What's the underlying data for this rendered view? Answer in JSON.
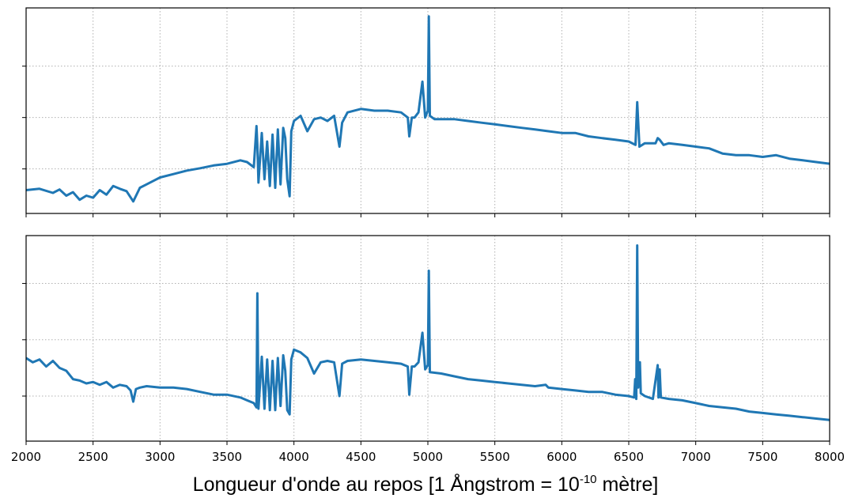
{
  "chart_data": [
    {
      "type": "line",
      "panel": "top",
      "xlim": [
        2000,
        8000
      ],
      "xticks": [
        2000,
        2500,
        3000,
        3500,
        4000,
        4500,
        5000,
        5500,
        6000,
        6500,
        7000,
        7500,
        8000
      ],
      "y_tick_labels_shown": false,
      "grid": true,
      "color": "#1f77b4",
      "series": [
        {
          "x": [
            2000,
            2100,
            2200,
            2250,
            2300,
            2350,
            2400,
            2450,
            2500,
            2550,
            2600,
            2650,
            2700,
            2750,
            2800,
            2850,
            2900,
            2950,
            3000,
            3100,
            3200,
            3300,
            3400,
            3500,
            3600,
            3650,
            3700,
            3720,
            3727,
            3735,
            3760,
            3780,
            3800,
            3820,
            3840,
            3860,
            3880,
            3900,
            3920,
            3935,
            3950,
            3968,
            3980,
            4000,
            4050,
            4100,
            4150,
            4200,
            4250,
            4300,
            4340,
            4360,
            4400,
            4500,
            4600,
            4700,
            4800,
            4850,
            4861,
            4880,
            4900,
            4930,
            4959,
            4980,
            5000,
            5007,
            5015,
            5050,
            5100,
            5200,
            5300,
            5400,
            5500,
            5600,
            5700,
            5800,
            5900,
            6000,
            6100,
            6200,
            6300,
            6400,
            6500,
            6550,
            6563,
            6580,
            6620,
            6700,
            6716,
            6731,
            6760,
            6800,
            6900,
            7000,
            7100,
            7200,
            7300,
            7400,
            7500,
            7600,
            7700,
            7800,
            7900,
            8000
          ],
          "y": [
            0.88,
            0.92,
            0.8,
            0.9,
            0.72,
            0.82,
            0.6,
            0.72,
            0.66,
            0.88,
            0.75,
            1.0,
            0.92,
            0.85,
            0.55,
            0.95,
            1.05,
            1.15,
            1.25,
            1.35,
            1.45,
            1.52,
            1.6,
            1.65,
            1.75,
            1.7,
            1.55,
            2.75,
            2.2,
            1.1,
            2.55,
            1.2,
            2.3,
            1.0,
            2.5,
            0.95,
            2.65,
            1.05,
            2.7,
            2.4,
            1.2,
            0.7,
            2.6,
            2.9,
            3.05,
            2.6,
            2.95,
            3.0,
            2.9,
            3.05,
            2.15,
            2.85,
            3.15,
            3.25,
            3.2,
            3.2,
            3.15,
            3.0,
            2.45,
            3.0,
            3.0,
            3.15,
            4.05,
            3.0,
            3.2,
            5.95,
            3.05,
            2.95,
            2.95,
            2.95,
            2.9,
            2.85,
            2.8,
            2.75,
            2.7,
            2.65,
            2.6,
            2.55,
            2.55,
            2.45,
            2.4,
            2.35,
            2.3,
            2.2,
            3.45,
            2.15,
            2.25,
            2.25,
            2.4,
            2.35,
            2.2,
            2.25,
            2.2,
            2.15,
            2.1,
            1.95,
            1.9,
            1.9,
            1.85,
            1.9,
            1.8,
            1.75,
            1.7,
            1.65
          ]
        }
      ]
    },
    {
      "type": "line",
      "panel": "bottom",
      "xlim": [
        2000,
        8000
      ],
      "xticks": [
        2000,
        2500,
        3000,
        3500,
        4000,
        4500,
        5000,
        5500,
        6000,
        6500,
        7000,
        7500,
        8000
      ],
      "xlabel_prefix": "Longueur d'onde au repos [1 Ångstrom = 10",
      "xlabel_exponent": "-10",
      "xlabel_suffix": " mètre]",
      "y_tick_labels_shown": false,
      "grid": true,
      "color": "#1f77b4",
      "series": [
        {
          "x": [
            2000,
            2050,
            2100,
            2150,
            2200,
            2250,
            2300,
            2350,
            2400,
            2450,
            2500,
            2550,
            2600,
            2650,
            2700,
            2750,
            2780,
            2800,
            2820,
            2850,
            2900,
            3000,
            3100,
            3200,
            3300,
            3400,
            3500,
            3600,
            3650,
            3700,
            3720,
            3727,
            3735,
            3760,
            3780,
            3800,
            3820,
            3840,
            3860,
            3880,
            3900,
            3920,
            3935,
            3950,
            3968,
            3980,
            4000,
            4050,
            4100,
            4150,
            4200,
            4250,
            4300,
            4340,
            4360,
            4400,
            4500,
            4600,
            4700,
            4800,
            4850,
            4861,
            4880,
            4900,
            4930,
            4959,
            4980,
            5000,
            5007,
            5015,
            5100,
            5200,
            5300,
            5400,
            5500,
            5600,
            5700,
            5800,
            5880,
            5900,
            6000,
            6100,
            6200,
            6300,
            6400,
            6500,
            6540,
            6548,
            6556,
            6563,
            6570,
            6583,
            6590,
            6620,
            6680,
            6716,
            6722,
            6731,
            6740,
            6800,
            6900,
            7000,
            7100,
            7200,
            7300,
            7400,
            7500,
            7600,
            7700,
            7800,
            7900,
            8000
          ],
          "y": [
            3.85,
            3.7,
            3.8,
            3.55,
            3.75,
            3.5,
            3.4,
            3.1,
            3.05,
            2.95,
            3.0,
            2.9,
            3.0,
            2.8,
            2.9,
            2.85,
            2.7,
            2.3,
            2.75,
            2.8,
            2.85,
            2.8,
            2.8,
            2.75,
            2.65,
            2.55,
            2.55,
            2.45,
            2.35,
            2.25,
            2.1,
            6.15,
            2.05,
            3.9,
            2.05,
            3.8,
            2.0,
            3.75,
            2.0,
            3.85,
            2.15,
            3.95,
            3.4,
            2.0,
            1.85,
            3.8,
            4.15,
            4.05,
            3.85,
            3.3,
            3.7,
            3.75,
            3.7,
            2.5,
            3.65,
            3.75,
            3.8,
            3.75,
            3.7,
            3.65,
            3.55,
            2.55,
            3.55,
            3.55,
            3.7,
            4.75,
            3.45,
            3.6,
            6.95,
            3.35,
            3.3,
            3.2,
            3.1,
            3.05,
            3.0,
            2.95,
            2.9,
            2.85,
            2.9,
            2.8,
            2.75,
            2.7,
            2.65,
            2.65,
            2.55,
            2.5,
            2.45,
            3.1,
            2.4,
            7.85,
            2.8,
            3.7,
            2.6,
            2.5,
            2.4,
            3.6,
            2.45,
            3.45,
            2.45,
            2.4,
            2.35,
            2.25,
            2.15,
            2.1,
            2.05,
            1.95,
            1.9,
            1.85,
            1.8,
            1.75,
            1.7,
            1.65
          ]
        }
      ]
    }
  ]
}
